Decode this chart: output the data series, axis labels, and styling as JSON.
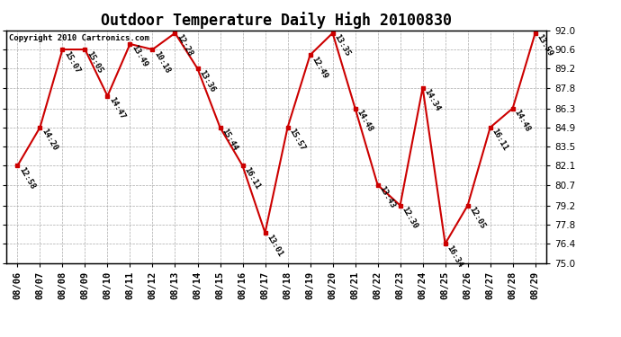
{
  "title": "Outdoor Temperature Daily High 20100830",
  "copyright": "Copyright 2010 Cartronics.com",
  "dates": [
    "08/06",
    "08/07",
    "08/08",
    "08/09",
    "08/10",
    "08/11",
    "08/12",
    "08/13",
    "08/14",
    "08/15",
    "08/16",
    "08/17",
    "08/18",
    "08/19",
    "08/20",
    "08/21",
    "08/22",
    "08/23",
    "08/24",
    "08/25",
    "08/26",
    "08/27",
    "08/28",
    "08/29"
  ],
  "values": [
    82.1,
    84.9,
    90.6,
    90.6,
    87.2,
    91.0,
    90.6,
    91.8,
    89.2,
    84.9,
    82.1,
    77.2,
    84.9,
    90.2,
    91.8,
    86.3,
    80.7,
    79.2,
    87.8,
    76.4,
    79.2,
    84.9,
    86.3,
    91.8
  ],
  "times": [
    "12:58",
    "14:20",
    "15:07",
    "15:05",
    "14:47",
    "13:49",
    "10:18",
    "12:28",
    "13:36",
    "15:44",
    "16:11",
    "13:01",
    "15:57",
    "12:49",
    "13:35",
    "14:48",
    "13:43",
    "12:30",
    "14:34",
    "16:34",
    "12:05",
    "16:11",
    "14:48",
    "13:59"
  ],
  "ylim": [
    75.0,
    92.0
  ],
  "yticks": [
    75.0,
    76.4,
    77.8,
    79.2,
    80.7,
    82.1,
    83.5,
    84.9,
    86.3,
    87.8,
    89.2,
    90.6,
    92.0
  ],
  "line_color": "#cc0000",
  "marker_color": "#cc0000",
  "bg_color": "#ffffff",
  "grid_color": "#aaaaaa",
  "title_fontsize": 12,
  "label_fontsize": 6.5,
  "tick_fontsize": 7.5,
  "copyright_fontsize": 6.5
}
